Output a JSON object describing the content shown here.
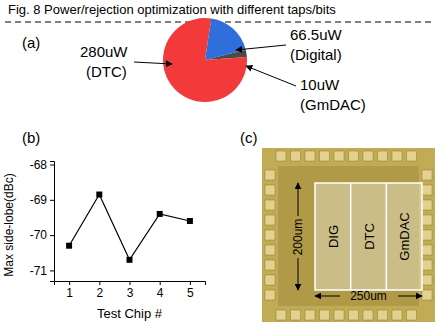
{
  "caption": "Fig. 8 Power/rejection optimization with different taps/bits",
  "chart_data": [
    {
      "type": "pie",
      "title": "(a)",
      "categories": [
        "(Digital)",
        "(GmDAC)",
        "(DTC)"
      ],
      "values": [
        66.5,
        10,
        280
      ],
      "value_labels": [
        "66.5uW",
        "10uW",
        "280uW"
      ],
      "colors": [
        "#2f6fdb",
        "#4a4a4a",
        "#f23a3a"
      ],
      "data_labels": true
    },
    {
      "type": "line",
      "title": "(b)",
      "x_label": "Test Chip #",
      "y_label": "Max side-lobe(dBc)",
      "x": [
        1,
        2,
        3,
        4,
        5
      ],
      "values": [
        -70.3,
        -68.85,
        -70.7,
        -69.4,
        -69.6
      ],
      "xlim": [
        0.5,
        5.5
      ],
      "xticks": [
        1,
        2,
        3,
        4,
        5
      ],
      "ylim": [
        -71.3,
        -67.9
      ],
      "yticks": [
        -68,
        -69,
        -70,
        -71
      ],
      "color": "#000000",
      "marker": "square",
      "line_style": "solid",
      "grid": false
    }
  ],
  "image": {
    "title": "(c)",
    "blocks": [
      "DIG",
      "DTC",
      "GmDAC"
    ],
    "height_label": "200um",
    "width_label": "250um"
  }
}
